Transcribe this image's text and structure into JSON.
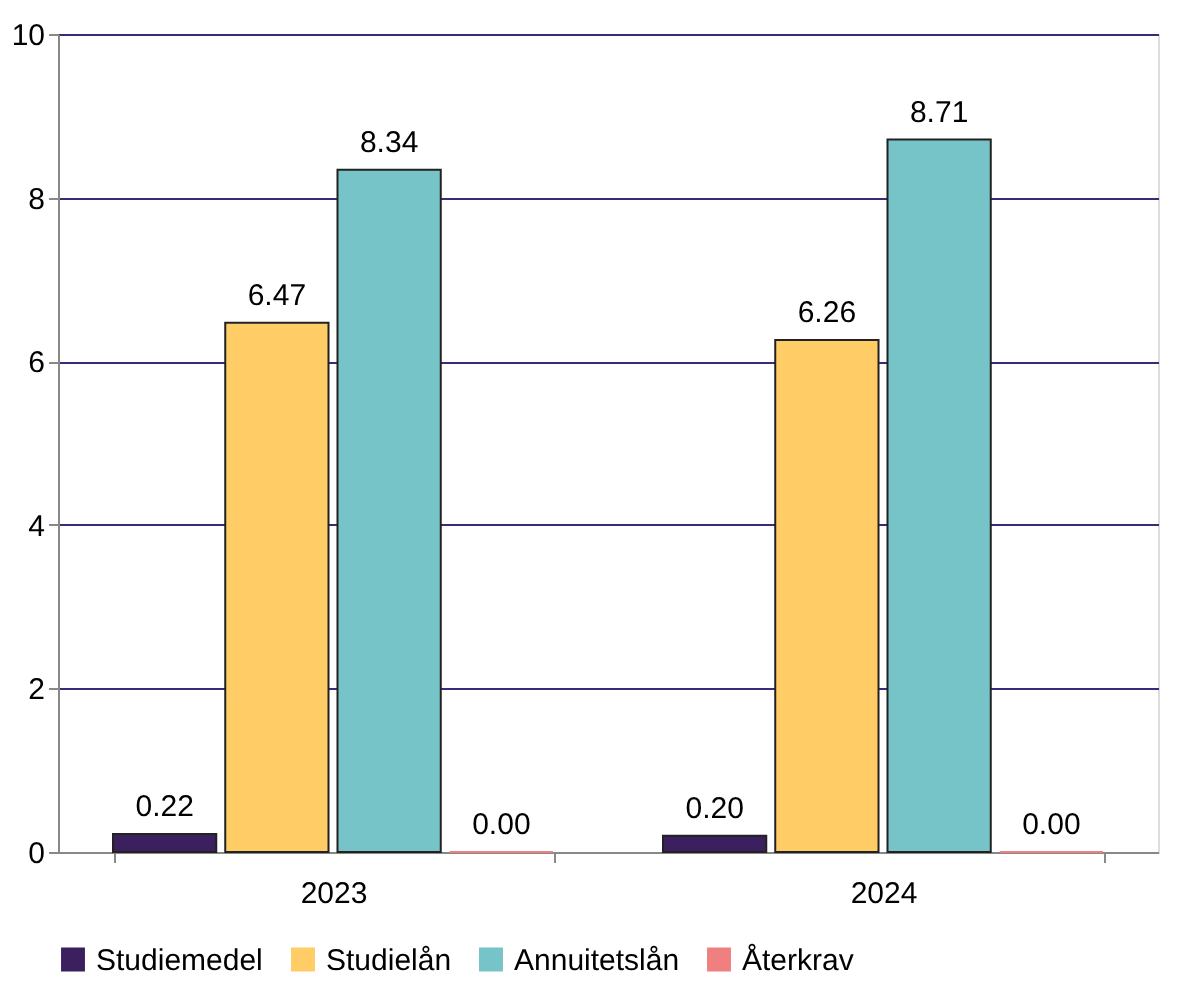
{
  "chart_data": {
    "type": "bar",
    "categories": [
      "2023",
      "2024"
    ],
    "series": [
      {
        "name": "Studiemedel",
        "color": "#3b1f5e",
        "values": [
          0.22,
          0.2
        ],
        "value_labels": [
          "0.22",
          "0.20"
        ]
      },
      {
        "name": "Studielån",
        "color": "#ffcc66",
        "values": [
          6.47,
          6.26
        ],
        "value_labels": [
          "6.47",
          "6.26"
        ]
      },
      {
        "name": "Annuitetslån",
        "color": "#77c4c8",
        "values": [
          8.34,
          8.71
        ],
        "value_labels": [
          "8.34",
          "8.71"
        ]
      },
      {
        "name": "Återkrav",
        "color": "#f08080",
        "values": [
          0,
          0
        ],
        "value_labels": [
          "0.00",
          "0.00"
        ]
      }
    ],
    "ylim": [
      0,
      10
    ],
    "yticks": [
      0,
      2,
      4,
      6,
      8,
      10
    ],
    "grid": "y",
    "legend": "bottom"
  }
}
